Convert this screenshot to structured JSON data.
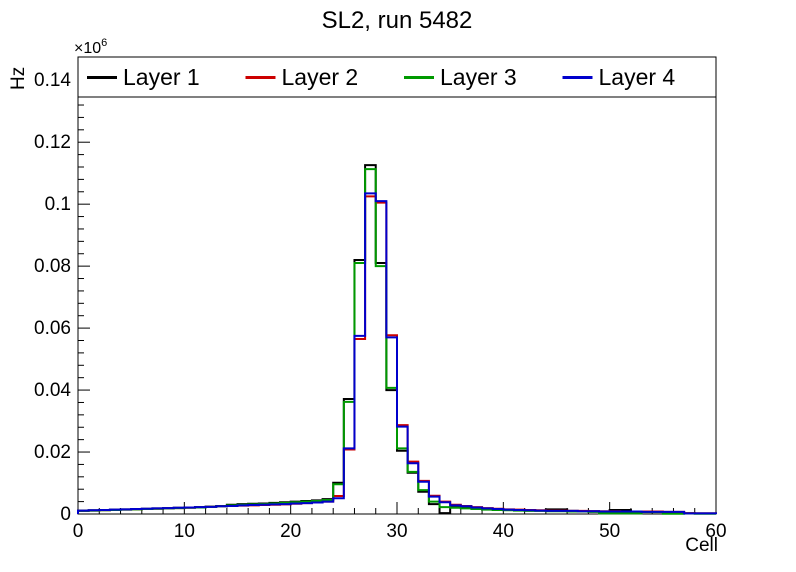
{
  "header": {
    "title": "SL2, run 5482"
  },
  "axes": {
    "x": {
      "title": "Cell",
      "min": 0,
      "max": 60,
      "tick_values": [
        0,
        10,
        20,
        30,
        40,
        50,
        60
      ],
      "tick_labels": [
        "0",
        "10",
        "20",
        "30",
        "40",
        "50",
        "60"
      ],
      "minor_step": 2
    },
    "y": {
      "title": "Hz",
      "exponent_base": "×10",
      "exponent_power": "6",
      "min": 0,
      "max": 0.1475,
      "tick_values": [
        0,
        0.02,
        0.04,
        0.06,
        0.08,
        0.1,
        0.12,
        0.14
      ],
      "tick_labels": [
        "0",
        "0.02",
        "0.04",
        "0.06",
        "0.08",
        "0.1",
        "0.12",
        "0.14"
      ],
      "minor_step": 0.004
    }
  },
  "legend": {
    "position": "top-inside-frame",
    "entries": [
      "Layer 1",
      "Layer 2",
      "Layer 3",
      "Layer 4"
    ]
  },
  "chart_data": {
    "type": "step-histogram",
    "title": "SL2, run 5482",
    "xlabel": "Cell",
    "ylabel": "Hz",
    "y_scale_label": "×10^6",
    "xlim": [
      0,
      60
    ],
    "ylim": [
      0,
      0.1475
    ],
    "bin_width": 1,
    "grid": false,
    "legend_position": "top",
    "series": [
      {
        "name": "Layer 1",
        "color": "#000000",
        "values": [
          0.0011,
          0.0012,
          0.0013,
          0.0014,
          0.0015,
          0.0016,
          0.0017,
          0.0018,
          0.0019,
          0.002,
          0.0021,
          0.0022,
          0.0024,
          0.0026,
          0.003,
          0.0032,
          0.0033,
          0.0034,
          0.0036,
          0.0038,
          0.004,
          0.0042,
          0.0044,
          0.0048,
          0.0101,
          0.0371,
          0.082,
          0.1126,
          0.081,
          0.04,
          0.0204,
          0.0133,
          0.0072,
          0.0032,
          0.0003,
          0.0022,
          0.002,
          0.0017,
          0.0015,
          0.0014,
          0.0013,
          0.0012,
          0.0012,
          0.0011,
          0.0015,
          0.0015,
          0.001,
          0.0009,
          0.0009,
          0.0008,
          0.0013,
          0.0013,
          0.0008,
          0.0007,
          0.0007,
          0.0006,
          0.0006,
          0.0002,
          0.0002,
          0.0002
        ]
      },
      {
        "name": "Layer 2",
        "color": "#cc0000",
        "values": [
          0.001,
          0.0011,
          0.0012,
          0.0013,
          0.0014,
          0.0015,
          0.0016,
          0.0017,
          0.0018,
          0.0019,
          0.002,
          0.0021,
          0.0023,
          0.0025,
          0.0026,
          0.0027,
          0.0028,
          0.0029,
          0.003,
          0.0031,
          0.0033,
          0.0035,
          0.0037,
          0.004,
          0.0058,
          0.0208,
          0.0565,
          0.1025,
          0.1005,
          0.0577,
          0.0287,
          0.0169,
          0.0107,
          0.0059,
          0.004,
          0.003,
          0.0026,
          0.0022,
          0.0019,
          0.0017,
          0.0015,
          0.0014,
          0.0013,
          0.0012,
          0.0011,
          0.0011,
          0.001,
          0.001,
          0.0009,
          0.0009,
          0.0009,
          0.0008,
          0.0008,
          0.0008,
          0.0008,
          0.0007,
          0.0007,
          0.0003,
          0.0002,
          0.0002
        ]
      },
      {
        "name": "Layer 3",
        "color": "#009900",
        "values": [
          0.001,
          0.0011,
          0.0012,
          0.0013,
          0.0014,
          0.0015,
          0.0016,
          0.0017,
          0.0018,
          0.0019,
          0.002,
          0.0021,
          0.0023,
          0.0025,
          0.0028,
          0.003,
          0.0031,
          0.0032,
          0.0034,
          0.0036,
          0.0038,
          0.004,
          0.0042,
          0.0045,
          0.0096,
          0.0362,
          0.081,
          0.1113,
          0.08,
          0.0407,
          0.0212,
          0.0136,
          0.0077,
          0.004,
          0.0022,
          0.002,
          0.0018,
          0.0016,
          0.0014,
          0.0013,
          0.0012,
          0.0011,
          0.001,
          0.001,
          0.0009,
          0.0009,
          0.0008,
          0.0008,
          0.0007,
          0.0002,
          0.0002,
          0.0002,
          0.0002,
          0.0006,
          0.0006,
          0.0001,
          0.0001,
          0.0002,
          0.0001,
          0.0001
        ]
      },
      {
        "name": "Layer 4",
        "color": "#0000cc",
        "values": [
          0.0011,
          0.0012,
          0.0013,
          0.0014,
          0.0015,
          0.0016,
          0.0017,
          0.0018,
          0.0019,
          0.002,
          0.0021,
          0.0022,
          0.0023,
          0.0025,
          0.0026,
          0.0028,
          0.0029,
          0.003,
          0.0031,
          0.0032,
          0.0034,
          0.0035,
          0.0037,
          0.004,
          0.0051,
          0.0212,
          0.0575,
          0.1035,
          0.101,
          0.057,
          0.0282,
          0.0164,
          0.0104,
          0.0056,
          0.0038,
          0.0028,
          0.0025,
          0.0021,
          0.0018,
          0.0016,
          0.0014,
          0.0013,
          0.0012,
          0.0011,
          0.001,
          0.001,
          0.001,
          0.0009,
          0.0009,
          0.0008,
          0.0008,
          0.0008,
          0.0008,
          0.0007,
          0.0007,
          0.0007,
          0.0007,
          0.0002,
          0.0002,
          0.0002
        ]
      }
    ]
  }
}
